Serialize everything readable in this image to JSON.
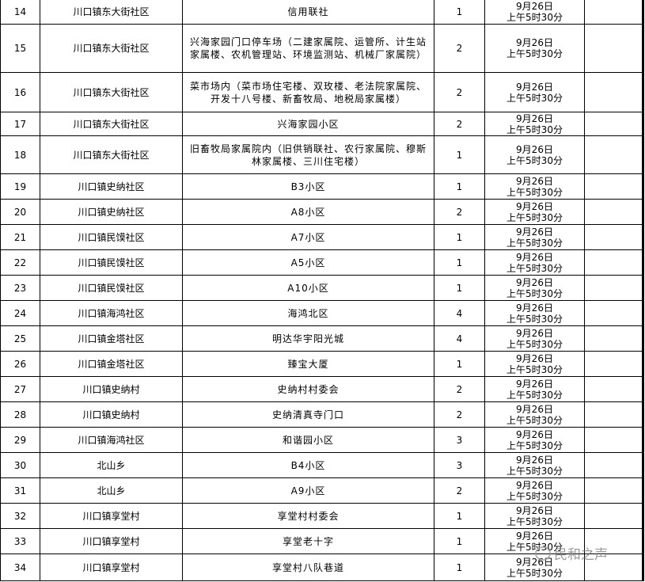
{
  "rows": [
    {
      "no": "14",
      "community": "川口镇东大街社区",
      "location": "信用联社",
      "count": "1",
      "date": "9月26日",
      "time": "上午5时30分",
      "h": 31
    },
    {
      "no": "15",
      "community": "川口镇东大街社区",
      "location": "兴海家园门口停车场（二建家属院、运管所、计生站家属楼、农机管理站、环境监测站、机械厂家属院）",
      "count": "2",
      "date": "9月26日",
      "time": "上午5时30分",
      "h": 61
    },
    {
      "no": "16",
      "community": "川口镇东大街社区",
      "location": "菜市场内（菜市场住宅楼、双玫楼、老法院家属院、开发十八号楼、新畜牧局、地税局家属楼）",
      "count": "2",
      "date": "9月26日",
      "time": "上午5时30分",
      "h": 50
    },
    {
      "no": "17",
      "community": "川口镇东大街社区",
      "location": "兴海家园小区",
      "count": "2",
      "date": "9月26日",
      "time": "上午5时30分",
      "h": 30
    },
    {
      "no": "18",
      "community": "川口镇东大街社区",
      "location": "旧畜牧局家属院内（旧供销联社、农行家属院、穆斯林家属楼、三川住宅楼）",
      "count": "1",
      "date": "9月26日",
      "time": "上午5时30分",
      "h": 48
    },
    {
      "no": "19",
      "community": "川口镇史纳社区",
      "location": "B3小区",
      "count": "1",
      "date": "9月26日",
      "time": "上午5时30分",
      "h": 32
    },
    {
      "no": "20",
      "community": "川口镇史纳社区",
      "location": "A8小区",
      "count": "2",
      "date": "9月26日",
      "time": "上午5时30分",
      "h": 32
    },
    {
      "no": "21",
      "community": "川口镇民馍社区",
      "location": "A7小区",
      "count": "1",
      "date": "9月26日",
      "time": "上午5时30分",
      "h": 32
    },
    {
      "no": "22",
      "community": "川口镇民馍社区",
      "location": "A5小区",
      "count": "1",
      "date": "9月26日",
      "time": "上午5时30分",
      "h": 32
    },
    {
      "no": "23",
      "community": "川口镇民馍社区",
      "location": "A10小区",
      "count": "1",
      "date": "9月26日",
      "time": "上午5时30分",
      "h": 32
    },
    {
      "no": "24",
      "community": "川口镇海鸿社区",
      "location": "海鸿北区",
      "count": "4",
      "date": "9月26日",
      "time": "上午5时30分",
      "h": 32
    },
    {
      "no": "25",
      "community": "川口镇金塔社区",
      "location": "明达华宇阳光城",
      "count": "4",
      "date": "9月26日",
      "time": "上午5时30分",
      "h": 32
    },
    {
      "no": "26",
      "community": "川口镇金塔社区",
      "location": "臻宝大厦",
      "count": "1",
      "date": "9月26日",
      "time": "上午5时30分",
      "h": 32
    },
    {
      "no": "27",
      "community": "川口镇史纳村",
      "location": "史纳村村委会",
      "count": "2",
      "date": "9月26日",
      "time": "上午5时30分",
      "h": 32
    },
    {
      "no": "28",
      "community": "川口镇史纳村",
      "location": "史纳清真寺门口",
      "count": "2",
      "date": "9月26日",
      "time": "上午5时30分",
      "h": 32
    },
    {
      "no": "29",
      "community": "川口镇海鸿社区",
      "location": "和谐园小区",
      "count": "3",
      "date": "9月26日",
      "time": "上午5时30分",
      "h": 32
    },
    {
      "no": "30",
      "community": "北山乡",
      "location": "B4小区",
      "count": "3",
      "date": "9月26日",
      "time": "上午5时30分",
      "h": 32
    },
    {
      "no": "31",
      "community": "北山乡",
      "location": "A9小区",
      "count": "2",
      "date": "9月26日",
      "time": "上午5时30分",
      "h": 32
    },
    {
      "no": "32",
      "community": "川口镇享堂村",
      "location": "享堂村村委会",
      "count": "1",
      "date": "9月26日",
      "time": "上午5时30分",
      "h": 32
    },
    {
      "no": "33",
      "community": "川口镇享堂村",
      "location": "享堂老十字",
      "count": "1",
      "date": "9月26日",
      "time": "上午5时30分",
      "h": 32
    },
    {
      "no": "34",
      "community": "川口镇享堂村",
      "location": "享堂村八队巷道",
      "count": "1",
      "date": "9月26日",
      "time": "上午5时30分",
      "h": 34
    }
  ],
  "watermark": {
    "text": "民和之声",
    "icon": "wechat-icon"
  }
}
